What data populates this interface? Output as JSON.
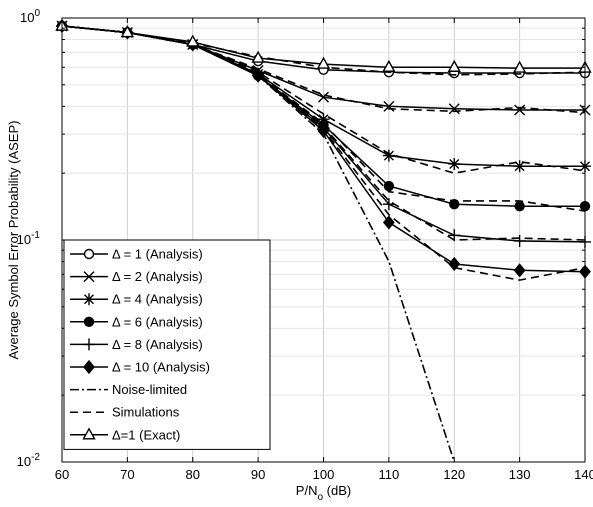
{
  "chart_data": {
    "type": "line",
    "xlabel": "P/N",
    "xlabel_sub": "o",
    "xlabel_unit": "(dB)",
    "ylabel": "Average Symbol Error Probability (ASEP)",
    "xlim": [
      60,
      140
    ],
    "ylim": [
      0.01,
      1
    ],
    "yscale": "log",
    "grid": true,
    "legend_position": "bottom-left",
    "x": [
      60,
      70,
      80,
      90,
      100,
      110,
      120,
      130,
      140
    ],
    "x_ticks": [
      "60",
      "70",
      "80",
      "90",
      "100",
      "110",
      "120",
      "130",
      "140"
    ],
    "y_ticks": [
      {
        "value": 1,
        "base": "10",
        "exp": "0"
      },
      {
        "value": 0.1,
        "base": "10",
        "exp": "-1"
      },
      {
        "value": 0.01,
        "base": "10",
        "exp": "-2"
      }
    ],
    "series": [
      {
        "name": "Δ = 1 (Analysis)",
        "marker": "circle-open",
        "line": "solid",
        "values": [
          0.92,
          0.86,
          0.76,
          0.64,
          0.585,
          0.57,
          0.565,
          0.565,
          0.565
        ]
      },
      {
        "name": "Δ = 2 (Analysis)",
        "marker": "x",
        "line": "solid",
        "values": [
          0.92,
          0.86,
          0.76,
          0.58,
          0.44,
          0.4,
          0.39,
          0.385,
          0.385
        ]
      },
      {
        "name": "Δ = 4 (Analysis)",
        "marker": "star",
        "line": "solid",
        "values": [
          0.92,
          0.86,
          0.76,
          0.56,
          0.35,
          0.24,
          0.22,
          0.215,
          0.215
        ]
      },
      {
        "name": "Δ = 6 (Analysis)",
        "marker": "circle-filled",
        "line": "solid",
        "values": [
          0.92,
          0.86,
          0.76,
          0.55,
          0.33,
          0.175,
          0.145,
          0.142,
          0.142
        ]
      },
      {
        "name": "Δ = 8 (Analysis)",
        "marker": "plus",
        "line": "solid",
        "values": [
          0.92,
          0.86,
          0.76,
          0.55,
          0.32,
          0.145,
          0.105,
          0.099,
          0.098
        ]
      },
      {
        "name": "Δ = 10 (Analysis)",
        "marker": "diamond-filled",
        "line": "solid",
        "values": [
          0.92,
          0.86,
          0.76,
          0.55,
          0.31,
          0.12,
          0.078,
          0.073,
          0.072
        ]
      },
      {
        "name": "Noise-limited",
        "marker": "none",
        "line": "dashdot",
        "values": [
          0.92,
          0.86,
          0.76,
          0.55,
          0.3,
          0.08,
          0.01,
          null,
          null
        ]
      },
      {
        "name": "Simulations",
        "marker": "none",
        "line": "dashed",
        "group": "sim",
        "values": [
          0.92,
          0.86,
          0.77,
          0.67,
          0.6,
          0.57,
          0.555,
          0.56,
          0.57
        ]
      },
      {
        "name": "",
        "marker": "none",
        "line": "dashed",
        "group": "sim",
        "values": [
          0.92,
          0.86,
          0.76,
          0.59,
          0.45,
          0.39,
          0.38,
          0.395,
          0.375
        ]
      },
      {
        "name": "",
        "marker": "none",
        "line": "dashed",
        "group": "sim",
        "values": [
          0.92,
          0.86,
          0.76,
          0.57,
          0.37,
          0.245,
          0.2,
          0.225,
          0.205
        ]
      },
      {
        "name": "",
        "marker": "none",
        "line": "dashed",
        "group": "sim",
        "values": [
          0.92,
          0.86,
          0.76,
          0.555,
          0.335,
          0.165,
          0.15,
          0.15,
          0.135
        ]
      },
      {
        "name": "",
        "marker": "none",
        "line": "dashed",
        "group": "sim",
        "values": [
          0.92,
          0.86,
          0.76,
          0.55,
          0.325,
          0.15,
          0.1,
          0.102,
          0.1
        ]
      },
      {
        "name": "",
        "marker": "none",
        "line": "dashed",
        "group": "sim",
        "values": [
          0.92,
          0.86,
          0.76,
          0.55,
          0.315,
          0.13,
          0.075,
          0.066,
          0.075
        ]
      },
      {
        "name": "Δ=1 (Exact)",
        "marker": "triangle-open",
        "line": "solid",
        "values": [
          0.92,
          0.86,
          0.78,
          0.66,
          0.62,
          0.6,
          0.6,
          0.595,
          0.595
        ]
      }
    ]
  }
}
